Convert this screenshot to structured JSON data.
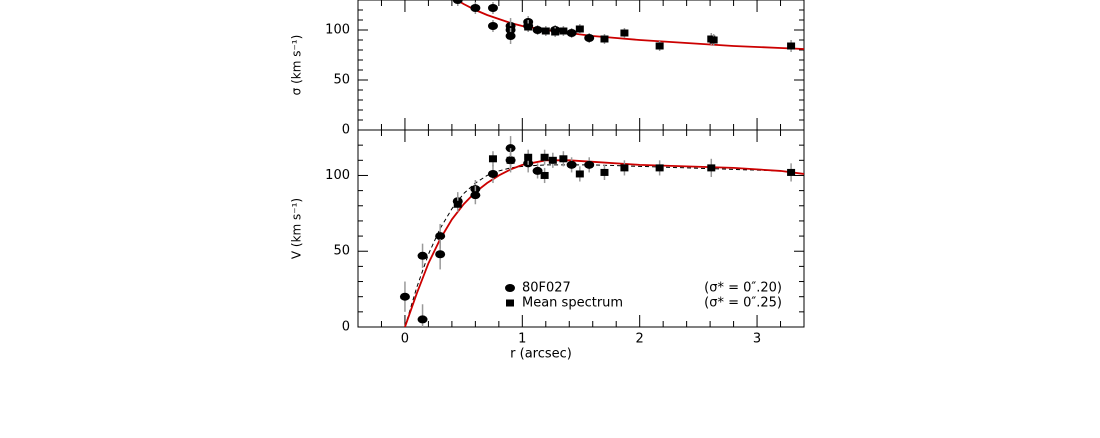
{
  "chart_data": [
    {
      "type": "scatter",
      "ylabel": "σ (km s⁻¹)",
      "xlim": [
        -0.4,
        3.4
      ],
      "ylim": [
        0,
        130
      ],
      "xticks": [
        0,
        1,
        2,
        3
      ],
      "xminor": [
        -0.2,
        0.2,
        0.4,
        0.6,
        0.8,
        1.2,
        1.4,
        1.6,
        1.8,
        2.2,
        2.4,
        2.6,
        2.8,
        3.2
      ],
      "yticks": [
        0,
        50,
        100
      ],
      "yminor": [
        10,
        20,
        30,
        40,
        60,
        70,
        80,
        90,
        110,
        120
      ],
      "xtick_labels": false,
      "series": [
        {
          "kind": "line",
          "color": "#cc0000",
          "style": "solid",
          "x": [
            0.4,
            0.5,
            0.6,
            0.7,
            0.8,
            0.9,
            1.0,
            1.2,
            1.4,
            1.6,
            1.8,
            2.0,
            2.4,
            2.8,
            3.2,
            3.4
          ],
          "values": [
            133,
            126,
            120,
            115,
            111,
            107,
            104,
            100,
            97,
            94,
            92,
            90,
            87,
            84,
            82,
            81
          ]
        },
        {
          "kind": "points",
          "marker": "circle",
          "color": "#000000",
          "x": [
            0.45,
            0.6,
            0.75,
            0.75,
            0.9,
            0.9,
            0.9,
            1.05,
            1.05,
            1.13,
            1.28,
            1.42,
            1.57
          ],
          "values": [
            130,
            122,
            122,
            104,
            104,
            100,
            94,
            108,
            104,
            100,
            100,
            97,
            92
          ],
          "errors": [
            6,
            6,
            6,
            6,
            8,
            8,
            8,
            6,
            6,
            5,
            5,
            5,
            5
          ]
        },
        {
          "kind": "points",
          "marker": "square",
          "color": "#000000",
          "x": [
            1.05,
            1.2,
            1.28,
            1.35,
            1.49,
            1.7,
            1.87,
            2.17,
            2.61,
            2.63,
            3.29
          ],
          "values": [
            103,
            99,
            98,
            99,
            101,
            91,
            97,
            84,
            91,
            90,
            84
          ],
          "errors": [
            5,
            5,
            5,
            5,
            5,
            5,
            5,
            5,
            6,
            6,
            6
          ]
        }
      ]
    },
    {
      "type": "scatter",
      "ylabel": "V (km s⁻¹)",
      "xlabel": "r (arcsec)",
      "xlim": [
        -0.4,
        3.4
      ],
      "ylim": [
        0,
        130
      ],
      "xticks": [
        0,
        1,
        2,
        3
      ],
      "xminor": [
        -0.2,
        0.2,
        0.4,
        0.6,
        0.8,
        1.2,
        1.4,
        1.6,
        1.8,
        2.2,
        2.4,
        2.6,
        2.8,
        3.2
      ],
      "yticks": [
        0,
        50,
        100
      ],
      "yminor": [
        10,
        20,
        30,
        40,
        60,
        70,
        80,
        90,
        110,
        120
      ],
      "xtick_labels": true,
      "series": [
        {
          "kind": "line",
          "color": "#000000",
          "style": "dashed",
          "x": [
            0,
            0.1,
            0.2,
            0.3,
            0.4,
            0.5,
            0.6,
            0.7,
            0.8,
            0.9,
            1.0,
            1.2,
            1.4,
            1.6,
            2.0,
            2.4,
            2.8,
            3.2,
            3.4
          ],
          "values": [
            0,
            26,
            48,
            65,
            78,
            88,
            95,
            100,
            103,
            105,
            106,
            107,
            107,
            107,
            106,
            105,
            104,
            103,
            101
          ]
        },
        {
          "kind": "line",
          "color": "#cc0000",
          "style": "solid",
          "x": [
            0,
            0.1,
            0.2,
            0.3,
            0.4,
            0.5,
            0.6,
            0.7,
            0.8,
            0.9,
            1.0,
            1.2,
            1.4,
            1.6,
            2.0,
            2.4,
            2.8,
            3.2,
            3.4
          ],
          "values": [
            0,
            22,
            42,
            58,
            71,
            81,
            89,
            95,
            100,
            104,
            107,
            110,
            110,
            109,
            107,
            106,
            105,
            103,
            101
          ]
        },
        {
          "kind": "points",
          "marker": "circle",
          "color": "#000000",
          "name": "80F027",
          "note": "(σ* = 0″.20)",
          "x": [
            0,
            0.15,
            0.15,
            0.3,
            0.3,
            0.45,
            0.6,
            0.6,
            0.75,
            0.9,
            0.9,
            1.05,
            1.13,
            1.42,
            1.57
          ],
          "values": [
            20,
            5,
            47,
            60,
            48,
            83,
            91,
            87,
            101,
            118,
            110,
            108,
            103,
            107,
            107
          ],
          "errors": [
            10,
            10,
            8,
            8,
            10,
            6,
            6,
            6,
            6,
            8,
            8,
            6,
            5,
            5,
            5
          ]
        },
        {
          "kind": "points",
          "marker": "square",
          "color": "#000000",
          "name": "Mean spectrum",
          "note": "(σ* = 0″.25)",
          "x": [
            0.45,
            0.75,
            0.9,
            1.05,
            1.19,
            1.19,
            1.26,
            1.35,
            1.49,
            1.7,
            1.87,
            2.17,
            2.61,
            3.29
          ],
          "values": [
            81,
            111,
            110,
            112,
            112,
            100,
            110,
            111,
            101,
            102,
            105,
            105,
            105,
            102
          ],
          "errors": [
            5,
            5,
            5,
            5,
            5,
            5,
            5,
            5,
            5,
            5,
            5,
            5,
            6,
            6
          ]
        }
      ]
    }
  ]
}
